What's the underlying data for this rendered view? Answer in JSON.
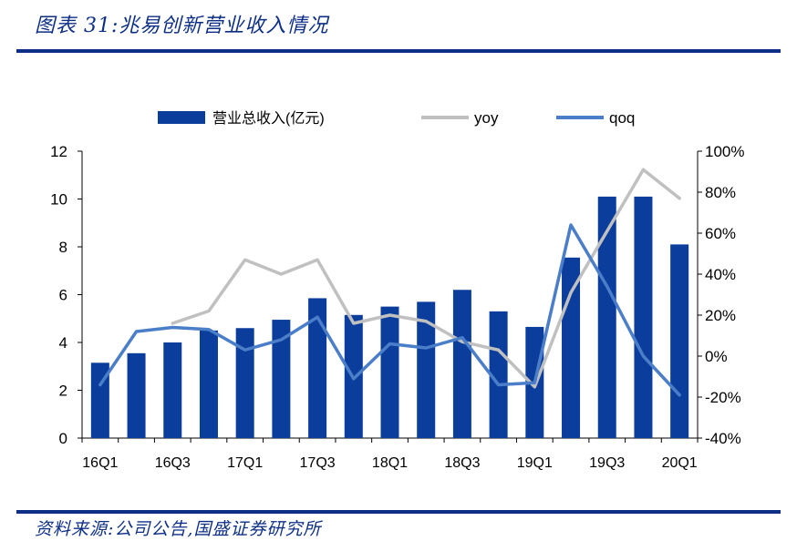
{
  "figure": {
    "title": "图表 31:兆易创新营业收入情况",
    "source": "资料来源:公司公告,国盛证券研究所"
  },
  "colors": {
    "bar": "#0b3d9c",
    "yoy": "#c0c0c0",
    "qoq": "#4a7ec9",
    "rule": "#0d2f86"
  },
  "chart_data": {
    "type": "bar",
    "categories": [
      "16Q1",
      "16Q2",
      "16Q3",
      "16Q4",
      "17Q1",
      "17Q2",
      "17Q3",
      "17Q4",
      "18Q1",
      "18Q2",
      "18Q3",
      "18Q4",
      "19Q1",
      "19Q2",
      "19Q3",
      "19Q4",
      "20Q1"
    ],
    "x_tick_labels": [
      "16Q1",
      "16Q3",
      "17Q1",
      "17Q3",
      "18Q1",
      "18Q3",
      "19Q1",
      "19Q3",
      "20Q1"
    ],
    "series": [
      {
        "name": "营业总收入(亿元)",
        "type": "bar",
        "axis": "left",
        "values": [
          3.15,
          3.55,
          4.0,
          4.5,
          4.6,
          4.95,
          5.85,
          5.15,
          5.5,
          5.7,
          6.2,
          5.3,
          4.65,
          7.55,
          10.1,
          10.1,
          8.1
        ]
      },
      {
        "name": "yoy",
        "type": "line",
        "axis": "right",
        "values": [
          null,
          null,
          0.16,
          0.22,
          0.47,
          0.4,
          0.47,
          0.16,
          0.2,
          0.17,
          0.07,
          0.03,
          -0.15,
          0.31,
          0.61,
          0.91,
          0.77
        ]
      },
      {
        "name": "qoq",
        "type": "line",
        "axis": "right",
        "values": [
          -0.14,
          0.12,
          0.14,
          0.13,
          0.03,
          0.08,
          0.19,
          -0.11,
          0.06,
          0.04,
          0.09,
          -0.14,
          -0.13,
          0.64,
          0.34,
          0.0,
          -0.19
        ]
      }
    ],
    "y_left": {
      "min": 0,
      "max": 12,
      "ticks": [
        0,
        2,
        4,
        6,
        8,
        10,
        12
      ]
    },
    "y_right": {
      "min": -0.4,
      "max": 1.0,
      "ticks": [
        "-40%",
        "-20%",
        "0%",
        "20%",
        "40%",
        "60%",
        "80%",
        "100%"
      ]
    },
    "legend": "top"
  }
}
